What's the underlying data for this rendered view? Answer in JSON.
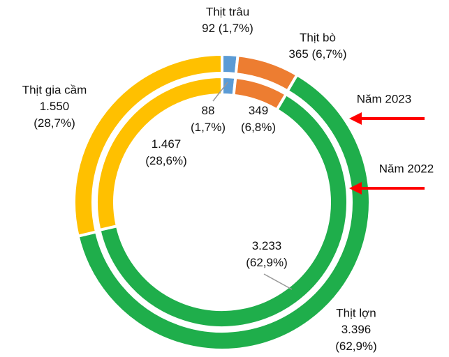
{
  "chart_data": {
    "type": "donut",
    "categories": [
      "Thịt trâu",
      "Thịt bò",
      "Thịt lợn",
      "Thịt gia cầm"
    ],
    "colors": [
      "#5b9bd5",
      "#ed7d31",
      "#1fae4b",
      "#ffc000"
    ],
    "series": [
      {
        "name": "Năm 2023",
        "values": [
          92,
          365,
          3396,
          1550
        ],
        "value_labels": [
          "92 (1,7%)",
          "365 (6,7%)",
          "3.396 (62,9%)",
          "1.550 (28,7%)"
        ]
      },
      {
        "name": "Năm 2022",
        "values": [
          88,
          349,
          3233,
          1467
        ],
        "value_labels": [
          "88 (1,7%)",
          "349 (6,8%)",
          "3.233 (62,9%)",
          "1.467 (28,6%)"
        ]
      }
    ]
  }
}
